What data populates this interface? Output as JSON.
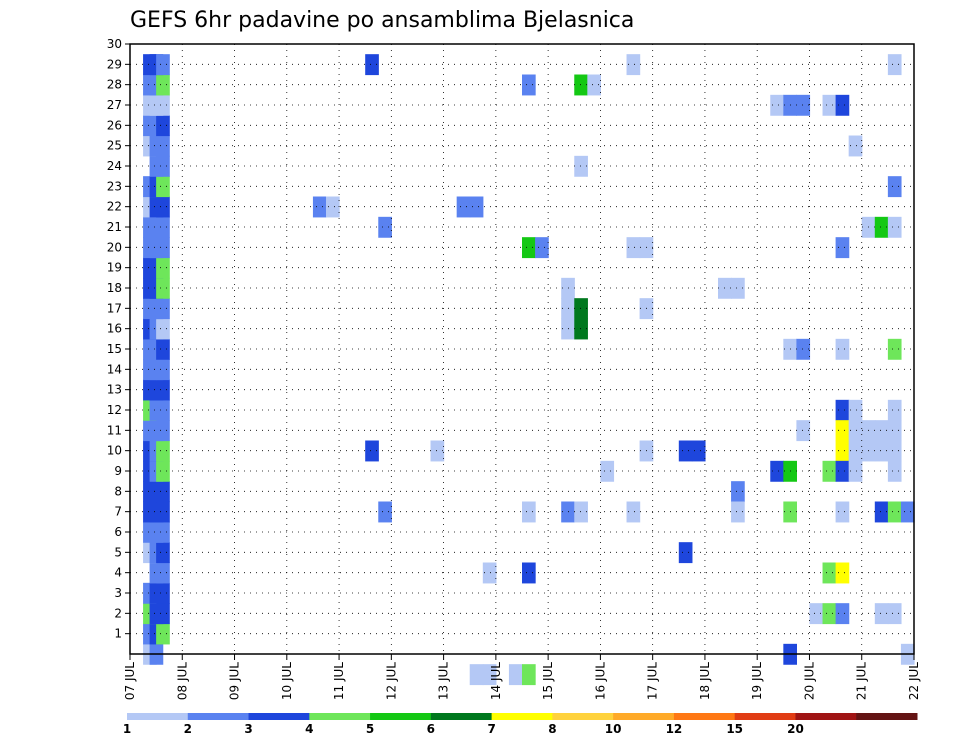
{
  "chart_data": {
    "type": "heatmap",
    "title": "GEFS 6hr padavine po ansamblima Bjelasnica",
    "x_ticks": [
      "07 JUL",
      "08 JUL",
      "09 JUL",
      "10 JUL",
      "11 JUL",
      "12 JUL",
      "13 JUL",
      "14 JUL",
      "15 JUL",
      "16 JUL",
      "17 JUL",
      "18 JUL",
      "19 JUL",
      "20 JUL",
      "21 JUL",
      "22 JUL"
    ],
    "x_start_day": 7,
    "x_end_day": 22,
    "y_ticks": [
      "1",
      "2",
      "3",
      "4",
      "5",
      "6",
      "7",
      "8",
      "9",
      "10",
      "11",
      "12",
      "13",
      "14",
      "15",
      "16",
      "17",
      "18",
      "19",
      "20",
      "21",
      "22",
      "23",
      "24",
      "25",
      "26",
      "27",
      "28",
      "29",
      "30"
    ],
    "y_min": 0,
    "y_max": 30,
    "grid": true,
    "legend_placement": "bottom",
    "legend": {
      "labels": [
        "1",
        "2",
        "3",
        "4",
        "5",
        "6",
        "7",
        "8",
        "10",
        "12",
        "15",
        "20"
      ],
      "colors": [
        "#b4c8f5",
        "#5a82f0",
        "#1e46dc",
        "#6ee65a",
        "#14c814",
        "#00781e",
        "#ffff00",
        "#ffd23c",
        "#ffaa28",
        "#ff7814",
        "#e13c14",
        "#a01414",
        "#641414"
      ]
    },
    "cells": [
      {
        "day": 7.375,
        "member": 0,
        "level": 1
      },
      {
        "day": 7.5,
        "member": 0,
        "level": 2
      },
      {
        "day": 7.375,
        "member": 1,
        "level": 2
      },
      {
        "day": 7.5,
        "member": 1,
        "level": 3
      },
      {
        "day": 7.625,
        "member": 1,
        "level": 4
      },
      {
        "day": 7.375,
        "member": 2,
        "level": 4
      },
      {
        "day": 7.5,
        "member": 2,
        "level": 3
      },
      {
        "day": 7.625,
        "member": 2,
        "level": 3
      },
      {
        "day": 7.375,
        "member": 3,
        "level": 2
      },
      {
        "day": 7.5,
        "member": 3,
        "level": 3
      },
      {
        "day": 7.625,
        "member": 3,
        "level": 3
      },
      {
        "day": 7.5,
        "member": 4,
        "level": 2
      },
      {
        "day": 7.625,
        "member": 4,
        "level": 2
      },
      {
        "day": 7.375,
        "member": 5,
        "level": 1
      },
      {
        "day": 7.5,
        "member": 5,
        "level": 2
      },
      {
        "day": 7.625,
        "member": 5,
        "level": 3
      },
      {
        "day": 7.375,
        "member": 6,
        "level": 2
      },
      {
        "day": 7.5,
        "member": 6,
        "level": 2
      },
      {
        "day": 7.625,
        "member": 6,
        "level": 2
      },
      {
        "day": 7.375,
        "member": 7,
        "level": 3
      },
      {
        "day": 7.5,
        "member": 7,
        "level": 3
      },
      {
        "day": 7.625,
        "member": 7,
        "level": 3
      },
      {
        "day": 7.375,
        "member": 8,
        "level": 3
      },
      {
        "day": 7.5,
        "member": 8,
        "level": 3
      },
      {
        "day": 7.625,
        "member": 8,
        "level": 3
      },
      {
        "day": 7.375,
        "member": 9,
        "level": 3
      },
      {
        "day": 7.5,
        "member": 9,
        "level": 2
      },
      {
        "day": 7.625,
        "member": 9,
        "level": 4
      },
      {
        "day": 7.375,
        "member": 10,
        "level": 3
      },
      {
        "day": 7.5,
        "member": 10,
        "level": 2
      },
      {
        "day": 7.625,
        "member": 10,
        "level": 4
      },
      {
        "day": 7.375,
        "member": 11,
        "level": 2
      },
      {
        "day": 7.5,
        "member": 11,
        "level": 2
      },
      {
        "day": 7.625,
        "member": 11,
        "level": 2
      },
      {
        "day": 7.375,
        "member": 12,
        "level": 4
      },
      {
        "day": 7.5,
        "member": 12,
        "level": 2
      },
      {
        "day": 7.625,
        "member": 12,
        "level": 2
      },
      {
        "day": 7.375,
        "member": 13,
        "level": 3
      },
      {
        "day": 7.5,
        "member": 13,
        "level": 3
      },
      {
        "day": 7.625,
        "member": 13,
        "level": 3
      },
      {
        "day": 7.375,
        "member": 14,
        "level": 2
      },
      {
        "day": 7.5,
        "member": 14,
        "level": 2
      },
      {
        "day": 7.625,
        "member": 14,
        "level": 2
      },
      {
        "day": 7.375,
        "member": 15,
        "level": 2
      },
      {
        "day": 7.5,
        "member": 15,
        "level": 2
      },
      {
        "day": 7.625,
        "member": 15,
        "level": 3
      },
      {
        "day": 7.375,
        "member": 16,
        "level": 3
      },
      {
        "day": 7.5,
        "member": 16,
        "level": 2
      },
      {
        "day": 7.625,
        "member": 16,
        "level": 1
      },
      {
        "day": 7.375,
        "member": 17,
        "level": 2
      },
      {
        "day": 7.5,
        "member": 17,
        "level": 2
      },
      {
        "day": 7.625,
        "member": 17,
        "level": 2
      },
      {
        "day": 7.375,
        "member": 18,
        "level": 3
      },
      {
        "day": 7.5,
        "member": 18,
        "level": 3
      },
      {
        "day": 7.625,
        "member": 18,
        "level": 4
      },
      {
        "day": 7.375,
        "member": 19,
        "level": 3
      },
      {
        "day": 7.5,
        "member": 19,
        "level": 3
      },
      {
        "day": 7.625,
        "member": 19,
        "level": 4
      },
      {
        "day": 7.375,
        "member": 20,
        "level": 2
      },
      {
        "day": 7.5,
        "member": 20,
        "level": 2
      },
      {
        "day": 7.625,
        "member": 20,
        "level": 2
      },
      {
        "day": 7.375,
        "member": 21,
        "level": 2
      },
      {
        "day": 7.5,
        "member": 21,
        "level": 2
      },
      {
        "day": 7.625,
        "member": 21,
        "level": 2
      },
      {
        "day": 7.375,
        "member": 22,
        "level": 1
      },
      {
        "day": 7.5,
        "member": 22,
        "level": 3
      },
      {
        "day": 7.625,
        "member": 22,
        "level": 3
      },
      {
        "day": 7.375,
        "member": 23,
        "level": 2
      },
      {
        "day": 7.5,
        "member": 23,
        "level": 3
      },
      {
        "day": 7.625,
        "member": 23,
        "level": 4
      },
      {
        "day": 7.5,
        "member": 24,
        "level": 2
      },
      {
        "day": 7.625,
        "member": 24,
        "level": 2
      },
      {
        "day": 7.375,
        "member": 25,
        "level": 1
      },
      {
        "day": 7.5,
        "member": 25,
        "level": 2
      },
      {
        "day": 7.625,
        "member": 25,
        "level": 2
      },
      {
        "day": 7.375,
        "member": 26,
        "level": 2
      },
      {
        "day": 7.5,
        "member": 26,
        "level": 2
      },
      {
        "day": 7.625,
        "member": 26,
        "level": 3
      },
      {
        "day": 7.375,
        "member": 27,
        "level": 1
      },
      {
        "day": 7.5,
        "member": 27,
        "level": 1
      },
      {
        "day": 7.625,
        "member": 27,
        "level": 1
      },
      {
        "day": 7.375,
        "member": 28,
        "level": 2
      },
      {
        "day": 7.5,
        "member": 28,
        "level": 2
      },
      {
        "day": 7.625,
        "member": 28,
        "level": 4
      },
      {
        "day": 7.375,
        "member": 29,
        "level": 3
      },
      {
        "day": 7.5,
        "member": 29,
        "level": 3
      },
      {
        "day": 7.625,
        "member": 29,
        "level": 2
      },
      {
        "day": 11.625,
        "member": 29,
        "level": 3
      },
      {
        "day": 16.625,
        "member": 29,
        "level": 1
      },
      {
        "day": 21.625,
        "member": 29,
        "level": 1
      },
      {
        "day": 14.625,
        "member": 28,
        "level": 2
      },
      {
        "day": 15.625,
        "member": 28,
        "level": 5
      },
      {
        "day": 15.875,
        "member": 28,
        "level": 1
      },
      {
        "day": 19.375,
        "member": 27,
        "level": 1
      },
      {
        "day": 19.625,
        "member": 27,
        "level": 2
      },
      {
        "day": 19.875,
        "member": 27,
        "level": 2
      },
      {
        "day": 20.375,
        "member": 27,
        "level": 1
      },
      {
        "day": 20.625,
        "member": 27,
        "level": 3
      },
      {
        "day": 20.875,
        "member": 25,
        "level": 1
      },
      {
        "day": 15.625,
        "member": 24,
        "level": 1
      },
      {
        "day": 21.625,
        "member": 23,
        "level": 2
      },
      {
        "day": 10.625,
        "member": 22,
        "level": 2
      },
      {
        "day": 10.875,
        "member": 22,
        "level": 1
      },
      {
        "day": 13.375,
        "member": 22,
        "level": 2
      },
      {
        "day": 13.625,
        "member": 22,
        "level": 2
      },
      {
        "day": 11.875,
        "member": 21,
        "level": 2
      },
      {
        "day": 21.125,
        "member": 21,
        "level": 1
      },
      {
        "day": 21.375,
        "member": 21,
        "level": 5
      },
      {
        "day": 21.625,
        "member": 21,
        "level": 1
      },
      {
        "day": 14.625,
        "member": 20,
        "level": 5
      },
      {
        "day": 14.875,
        "member": 20,
        "level": 2
      },
      {
        "day": 16.625,
        "member": 20,
        "level": 1
      },
      {
        "day": 16.875,
        "member": 20,
        "level": 1
      },
      {
        "day": 20.625,
        "member": 20,
        "level": 2
      },
      {
        "day": 15.375,
        "member": 18,
        "level": 1
      },
      {
        "day": 18.375,
        "member": 18,
        "level": 1
      },
      {
        "day": 18.625,
        "member": 18,
        "level": 1
      },
      {
        "day": 15.375,
        "member": 17,
        "level": 1
      },
      {
        "day": 15.625,
        "member": 17,
        "level": 6
      },
      {
        "day": 16.875,
        "member": 17,
        "level": 1
      },
      {
        "day": 15.375,
        "member": 16,
        "level": 1
      },
      {
        "day": 15.625,
        "member": 16,
        "level": 6
      },
      {
        "day": 19.625,
        "member": 15,
        "level": 1
      },
      {
        "day": 19.875,
        "member": 15,
        "level": 2
      },
      {
        "day": 20.625,
        "member": 15,
        "level": 1
      },
      {
        "day": 21.625,
        "member": 15,
        "level": 4
      },
      {
        "day": 20.625,
        "member": 12,
        "level": 3
      },
      {
        "day": 20.875,
        "member": 12,
        "level": 1
      },
      {
        "day": 21.625,
        "member": 12,
        "level": 1
      },
      {
        "day": 19.875,
        "member": 11,
        "level": 1
      },
      {
        "day": 20.625,
        "member": 11,
        "level": 7
      },
      {
        "day": 20.875,
        "member": 11,
        "level": 1
      },
      {
        "day": 21.125,
        "member": 11,
        "level": 1
      },
      {
        "day": 21.375,
        "member": 11,
        "level": 1
      },
      {
        "day": 21.625,
        "member": 11,
        "level": 1
      },
      {
        "day": 11.625,
        "member": 10,
        "level": 3
      },
      {
        "day": 12.875,
        "member": 10,
        "level": 1
      },
      {
        "day": 16.875,
        "member": 10,
        "level": 1
      },
      {
        "day": 17.625,
        "member": 10,
        "level": 3
      },
      {
        "day": 17.875,
        "member": 10,
        "level": 3
      },
      {
        "day": 20.625,
        "member": 10,
        "level": 7
      },
      {
        "day": 20.875,
        "member": 10,
        "level": 1
      },
      {
        "day": 21.125,
        "member": 10,
        "level": 1
      },
      {
        "day": 21.375,
        "member": 10,
        "level": 1
      },
      {
        "day": 21.625,
        "member": 10,
        "level": 1
      },
      {
        "day": 16.125,
        "member": 9,
        "level": 1
      },
      {
        "day": 19.375,
        "member": 9,
        "level": 3
      },
      {
        "day": 19.625,
        "member": 9,
        "level": 5
      },
      {
        "day": 20.375,
        "member": 9,
        "level": 4
      },
      {
        "day": 20.625,
        "member": 9,
        "level": 3
      },
      {
        "day": 20.875,
        "member": 9,
        "level": 1
      },
      {
        "day": 21.625,
        "member": 9,
        "level": 1
      },
      {
        "day": 18.625,
        "member": 8,
        "level": 2
      },
      {
        "day": 11.875,
        "member": 7,
        "level": 2
      },
      {
        "day": 14.625,
        "member": 7,
        "level": 1
      },
      {
        "day": 15.375,
        "member": 7,
        "level": 2
      },
      {
        "day": 15.625,
        "member": 7,
        "level": 1
      },
      {
        "day": 16.625,
        "member": 7,
        "level": 1
      },
      {
        "day": 18.625,
        "member": 7,
        "level": 1
      },
      {
        "day": 19.625,
        "member": 7,
        "level": 4
      },
      {
        "day": 20.625,
        "member": 7,
        "level": 1
      },
      {
        "day": 21.375,
        "member": 7,
        "level": 3
      },
      {
        "day": 21.625,
        "member": 7,
        "level": 4
      },
      {
        "day": 21.875,
        "member": 7,
        "level": 2
      },
      {
        "day": 17.625,
        "member": 5,
        "level": 3
      },
      {
        "day": 13.875,
        "member": 4,
        "level": 1
      },
      {
        "day": 14.625,
        "member": 4,
        "level": 3
      },
      {
        "day": 20.375,
        "member": 4,
        "level": 4
      },
      {
        "day": 20.625,
        "member": 4,
        "level": 7
      },
      {
        "day": 20.125,
        "member": 2,
        "level": 1
      },
      {
        "day": 20.375,
        "member": 2,
        "level": 4
      },
      {
        "day": 20.625,
        "member": 2,
        "level": 2
      },
      {
        "day": 21.375,
        "member": 2,
        "level": 1
      },
      {
        "day": 21.625,
        "member": 2,
        "level": 1
      },
      {
        "day": 19.625,
        "member": 0,
        "level": 3
      },
      {
        "day": 21.875,
        "member": 0,
        "level": 1
      },
      {
        "day": 13.625,
        "member": -1,
        "level": 1
      },
      {
        "day": 13.875,
        "member": -1,
        "level": 1
      },
      {
        "day": 14.375,
        "member": -1,
        "level": 1
      },
      {
        "day": 14.625,
        "member": -1,
        "level": 4
      }
    ]
  }
}
